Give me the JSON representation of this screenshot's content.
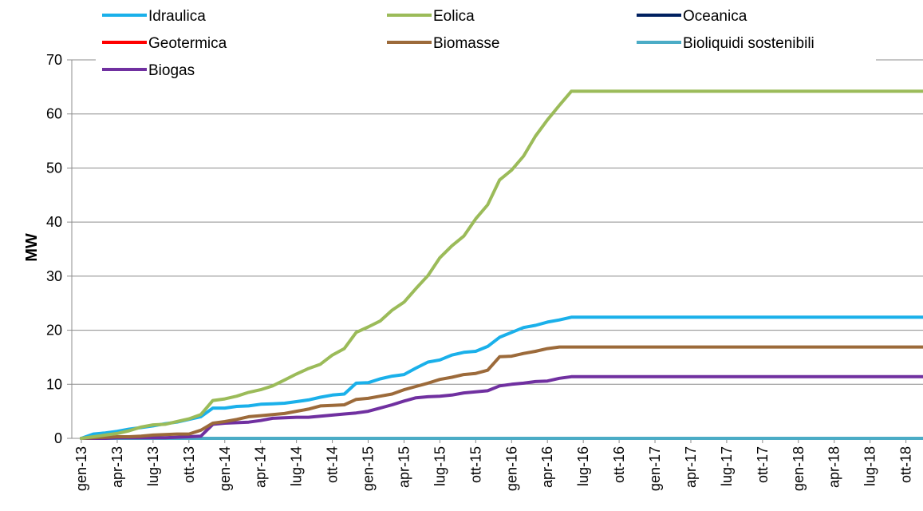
{
  "chart_data": {
    "type": "line",
    "ylabel": "MW",
    "xlabel": "",
    "ylim": [
      0,
      70
    ],
    "yticks": [
      0,
      10,
      20,
      30,
      40,
      50,
      60,
      70
    ],
    "grid": "horizontal",
    "legend_position": "top",
    "x": [
      "gen-13",
      "feb-13",
      "mar-13",
      "apr-13",
      "mag-13",
      "giu-13",
      "lug-13",
      "ago-13",
      "set-13",
      "ott-13",
      "nov-13",
      "dic-13",
      "gen-14",
      "feb-14",
      "mar-14",
      "apr-14",
      "mag-14",
      "giu-14",
      "lug-14",
      "ago-14",
      "set-14",
      "ott-14",
      "nov-14",
      "dic-14",
      "gen-15",
      "feb-15",
      "mar-15",
      "apr-15",
      "mag-15",
      "giu-15",
      "lug-15",
      "ago-15",
      "set-15",
      "ott-15",
      "nov-15",
      "dic-15",
      "gen-16",
      "feb-16",
      "mar-16",
      "apr-16",
      "mag-16",
      "giu-16",
      "lug-16",
      "ago-16",
      "set-16",
      "ott-16",
      "nov-16",
      "dic-16",
      "gen-17",
      "feb-17",
      "mar-17",
      "apr-17",
      "mag-17",
      "giu-17",
      "lug-17",
      "ago-17",
      "set-17",
      "ott-17",
      "nov-17",
      "dic-17",
      "gen-18",
      "feb-18",
      "mar-18",
      "apr-18",
      "mag-18",
      "giu-18",
      "lug-18",
      "ago-18",
      "set-18",
      "ott-18",
      "nov-18",
      "dic-18"
    ],
    "x_tick_labels": [
      "gen-13",
      "apr-13",
      "lug-13",
      "ott-13",
      "gen-14",
      "apr-14",
      "lug-14",
      "ott-14",
      "gen-15",
      "apr-15",
      "lug-15",
      "ott-15",
      "gen-16",
      "apr-16",
      "lug-16",
      "ott-16",
      "gen-17",
      "apr-17",
      "lug-17",
      "ott-17",
      "gen-18",
      "apr-18",
      "lug-18",
      "ott-18"
    ],
    "series": [
      {
        "name": "Idraulica",
        "color": "#1ab0ea",
        "values": [
          0,
          0.8,
          1.0,
          1.3,
          1.7,
          2.0,
          2.3,
          2.7,
          3.0,
          3.5,
          4.0,
          5.6,
          5.6,
          5.9,
          6.0,
          6.3,
          6.4,
          6.5,
          6.8,
          7.1,
          7.6,
          8.0,
          8.2,
          10.2,
          10.3,
          11.0,
          11.5,
          11.8,
          13.0,
          14.1,
          14.5,
          15.4,
          15.9,
          16.1,
          17.0,
          18.7,
          19.6,
          20.5,
          20.9,
          21.5,
          21.9,
          22.4,
          22.4,
          22.4,
          22.4,
          22.4,
          22.4,
          22.4,
          22.4,
          22.4,
          22.4,
          22.4,
          22.4,
          22.4,
          22.4,
          22.4,
          22.4,
          22.4,
          22.4,
          22.4,
          22.4,
          22.4,
          22.4,
          22.4,
          22.4,
          22.4,
          22.4,
          22.4,
          22.4,
          22.4,
          22.4,
          22.4
        ]
      },
      {
        "name": "Eolica",
        "color": "#9bbb59",
        "values": [
          0,
          0.3,
          0.6,
          0.9,
          1.4,
          2.1,
          2.5,
          2.6,
          3.1,
          3.6,
          4.4,
          7.0,
          7.3,
          7.8,
          8.5,
          9.0,
          9.7,
          10.8,
          11.9,
          12.9,
          13.7,
          15.4,
          16.6,
          19.6,
          20.6,
          21.7,
          23.7,
          25.2,
          27.7,
          30.1,
          33.4,
          35.6,
          37.4,
          40.6,
          43.2,
          47.8,
          49.6,
          52.2,
          55.9,
          58.9,
          61.6,
          64.2,
          64.2,
          64.2,
          64.2,
          64.2,
          64.2,
          64.2,
          64.2,
          64.2,
          64.2,
          64.2,
          64.2,
          64.2,
          64.2,
          64.2,
          64.2,
          64.2,
          64.2,
          64.2,
          64.2,
          64.2,
          64.2,
          64.2,
          64.2,
          64.2,
          64.2,
          64.2,
          64.2,
          64.2,
          64.2,
          64.2
        ]
      },
      {
        "name": "Oceanica",
        "color": "#002060",
        "values": [
          0,
          0,
          0,
          0,
          0,
          0,
          0,
          0,
          0,
          0,
          0,
          0,
          0,
          0,
          0,
          0,
          0,
          0,
          0,
          0,
          0,
          0,
          0,
          0,
          0,
          0,
          0,
          0,
          0,
          0,
          0,
          0,
          0,
          0,
          0,
          0,
          0,
          0,
          0,
          0,
          0,
          0,
          0,
          0,
          0,
          0,
          0,
          0,
          0,
          0,
          0,
          0,
          0,
          0,
          0,
          0,
          0,
          0,
          0,
          0,
          0,
          0,
          0,
          0,
          0,
          0,
          0,
          0,
          0,
          0,
          0,
          0
        ]
      },
      {
        "name": "Geotermica",
        "color": "#ff0000",
        "values": [
          0,
          0,
          0,
          0,
          0,
          0,
          0,
          0,
          0,
          0,
          0,
          0,
          0,
          0,
          0,
          0,
          0,
          0,
          0,
          0,
          0,
          0,
          0,
          0,
          0,
          0,
          0,
          0,
          0,
          0,
          0,
          0,
          0,
          0,
          0,
          0,
          0,
          0,
          0,
          0,
          0,
          0,
          0,
          0,
          0,
          0,
          0,
          0,
          0,
          0,
          0,
          0,
          0,
          0,
          0,
          0,
          0,
          0,
          0,
          0,
          0,
          0,
          0,
          0,
          0,
          0,
          0,
          0,
          0,
          0,
          0,
          0
        ]
      },
      {
        "name": "Biomasse",
        "color": "#9c6a3a",
        "values": [
          0,
          0.1,
          0.2,
          0.3,
          0.3,
          0.4,
          0.6,
          0.7,
          0.8,
          0.8,
          1.5,
          2.8,
          3.1,
          3.5,
          4.0,
          4.2,
          4.4,
          4.6,
          5.0,
          5.4,
          6.0,
          6.1,
          6.2,
          7.2,
          7.4,
          7.8,
          8.2,
          9.0,
          9.6,
          10.2,
          10.9,
          11.3,
          11.8,
          12.0,
          12.6,
          15.1,
          15.2,
          15.7,
          16.1,
          16.6,
          16.9,
          16.9,
          16.9,
          16.9,
          16.9,
          16.9,
          16.9,
          16.9,
          16.9,
          16.9,
          16.9,
          16.9,
          16.9,
          16.9,
          16.9,
          16.9,
          16.9,
          16.9,
          16.9,
          16.9,
          16.9,
          16.9,
          16.9,
          16.9,
          16.9,
          16.9,
          16.9,
          16.9,
          16.9,
          16.9,
          16.9,
          16.9
        ]
      },
      {
        "name": "Bioliquidi sostenibili",
        "color": "#4bacc6",
        "values": [
          0,
          0,
          0,
          0,
          0,
          0,
          0,
          0,
          0,
          0,
          0,
          0,
          0,
          0,
          0,
          0,
          0,
          0,
          0,
          0,
          0,
          0,
          0,
          0,
          0,
          0,
          0,
          0,
          0,
          0,
          0,
          0,
          0,
          0,
          0,
          0,
          0,
          0,
          0,
          0,
          0,
          0,
          0,
          0,
          0,
          0,
          0,
          0,
          0,
          0,
          0,
          0,
          0,
          0,
          0,
          0,
          0,
          0,
          0,
          0,
          0,
          0,
          0,
          0,
          0,
          0,
          0,
          0,
          0,
          0,
          0,
          0
        ]
      },
      {
        "name": "Biogas",
        "color": "#7030a0",
        "values": [
          0,
          0,
          0,
          0.1,
          0.1,
          0.1,
          0.1,
          0.1,
          0.2,
          0.3,
          0.4,
          2.6,
          2.8,
          2.9,
          3.0,
          3.3,
          3.7,
          3.8,
          3.9,
          3.9,
          4.1,
          4.3,
          4.5,
          4.7,
          5.0,
          5.6,
          6.2,
          6.9,
          7.5,
          7.7,
          7.8,
          8.0,
          8.4,
          8.6,
          8.8,
          9.7,
          10.0,
          10.2,
          10.5,
          10.6,
          11.1,
          11.4,
          11.4,
          11.4,
          11.4,
          11.4,
          11.4,
          11.4,
          11.4,
          11.4,
          11.4,
          11.4,
          11.4,
          11.4,
          11.4,
          11.4,
          11.4,
          11.4,
          11.4,
          11.4,
          11.4,
          11.4,
          11.4,
          11.4,
          11.4,
          11.4,
          11.4,
          11.4,
          11.4,
          11.4,
          11.4,
          11.4
        ]
      }
    ]
  }
}
